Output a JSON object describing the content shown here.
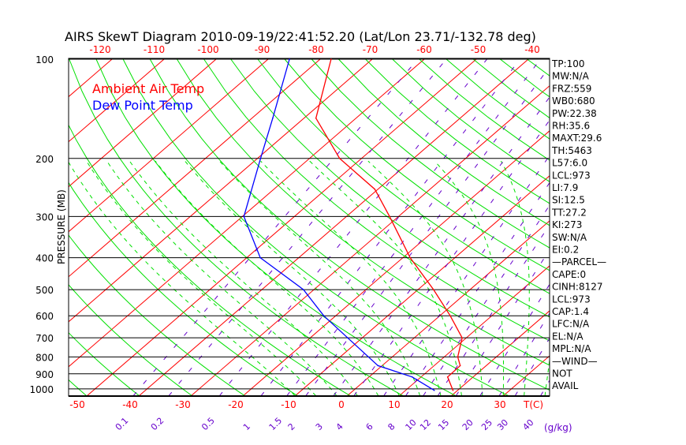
{
  "chart_data": {
    "type": "line",
    "subtype": "skew-t log-p",
    "title": "AIRS SkewT Diagram 2010-09-19/22:41:52.20 (Lat/Lon 23.71/-132.78 deg)",
    "ylabel": "PRESSURE (MB)",
    "xlabel": "T(C)",
    "mixing_ratio_unit": "(g/kg)",
    "pressure_ticks": [
      100,
      200,
      300,
      400,
      500,
      600,
      700,
      800,
      900,
      1000
    ],
    "pressure_range": [
      100,
      1050
    ],
    "bottom_temp_ticks": [
      -50,
      -40,
      -30,
      -20,
      -10,
      0,
      10,
      20,
      30
    ],
    "top_temp_ticks": [
      -120,
      -110,
      -100,
      -90,
      -80,
      -70,
      -60,
      -50,
      -40
    ],
    "mixing_ratio_labels": [
      "0.1",
      "0.2",
      "0.5",
      "1",
      "1.5",
      "2",
      "3",
      "4",
      "6",
      "8",
      "10",
      "12",
      "15",
      "20",
      "25",
      "30",
      "40"
    ],
    "legend": [
      "Ambient Air Temp",
      "Dew Point Temp"
    ],
    "series": [
      {
        "name": "Ambient Air Temp",
        "color": "#ff0000",
        "pressure": [
          100,
          151,
          200,
          248,
          300,
          400,
          500,
          600,
          700,
          800,
          850,
          920,
          1010
        ],
        "temperature": [
          -77.9,
          -67.7,
          -54.2,
          -40.6,
          -31.7,
          -18.6,
          -7.0,
          2.0,
          9.2,
          12.6,
          15.0,
          15.1,
          19.1
        ]
      },
      {
        "name": "Dew Point Temp",
        "color": "#0000ff",
        "pressure": [
          100,
          151,
          200,
          300,
          400,
          500,
          600,
          700,
          850,
          920,
          1010
        ],
        "temperature": [
          -85.9,
          -76.0,
          -69.4,
          -59.7,
          -47.4,
          -32.0,
          -22.3,
          -12.8,
          -0.8,
          8.3,
          15.5
        ]
      }
    ],
    "indices": [
      "TP:100",
      "MW:N/A",
      "FRZ:559",
      "WB0:680",
      "PW:22.38",
      "RH:35.6",
      "MAXT:29.6",
      "TH:5463",
      "L57:6.0",
      "LCL:973",
      "LI:7.9",
      "SI:12.5",
      "TT:27.2",
      "KI:273",
      "SW:N/A",
      "EI:0.2",
      "—PARCEL—",
      "CAPE:0",
      "CINH:8127",
      "LCL:973",
      "CAP:1.4",
      "LFC:N/A",
      "EL:N/A",
      "MPL:N/A",
      "—WIND—",
      "NOT",
      "AVAIL"
    ],
    "colors": {
      "isotherm": "#ff0000",
      "dry_adiabat": "#00e000",
      "moist_adiabat": "#00e000",
      "mixing_ratio": "#6600cc",
      "axis": "#000000"
    }
  }
}
